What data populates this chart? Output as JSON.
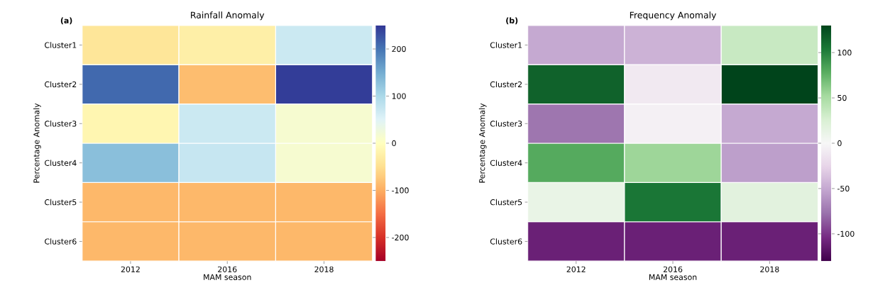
{
  "chart_data": [
    {
      "type": "heatmap",
      "title": "Rainfall Anomaly",
      "xlabel": "MAM season",
      "ylabel": "Percentage Anomaly",
      "annotations": [
        "(a)"
      ],
      "categories": [
        "2012",
        "2016",
        "2018"
      ],
      "y_categories": [
        "Cluster1",
        "Cluster2",
        "Cluster3",
        "Cluster4",
        "Cluster5",
        "Cluster6"
      ],
      "cells": [
        [
          -40,
          -25,
          70
        ],
        [
          210,
          -85,
          245
        ],
        [
          -15,
          70,
          15
        ],
        [
          130,
          75,
          15
        ],
        [
          -90,
          -90,
          -90
        ],
        [
          -90,
          -90,
          -90
        ]
      ],
      "clim": [
        -250,
        250
      ],
      "cticks": [
        -200,
        -100,
        0,
        100,
        200
      ]
    },
    {
      "type": "heatmap",
      "title": "Frequency Anomaly",
      "xlabel": "MAM season",
      "ylabel": "Percentage Anomaly",
      "annotations": [
        "(b)"
      ],
      "categories": [
        "2012",
        "2016",
        "2018"
      ],
      "y_categories": [
        "Cluster1",
        "Cluster2",
        "Cluster3",
        "Cluster4",
        "Cluster5",
        "Cluster6"
      ],
      "cells": [
        [
          -50,
          -45,
          35
        ],
        [
          115,
          -10,
          130
        ],
        [
          -75,
          -5,
          -50
        ],
        [
          80,
          55,
          -55
        ],
        [
          12,
          105,
          18
        ],
        [
          -110,
          -110,
          -110
        ]
      ],
      "clim": [
        -130,
        130
      ],
      "cticks": [
        -100,
        -50,
        0,
        50,
        100
      ]
    }
  ]
}
